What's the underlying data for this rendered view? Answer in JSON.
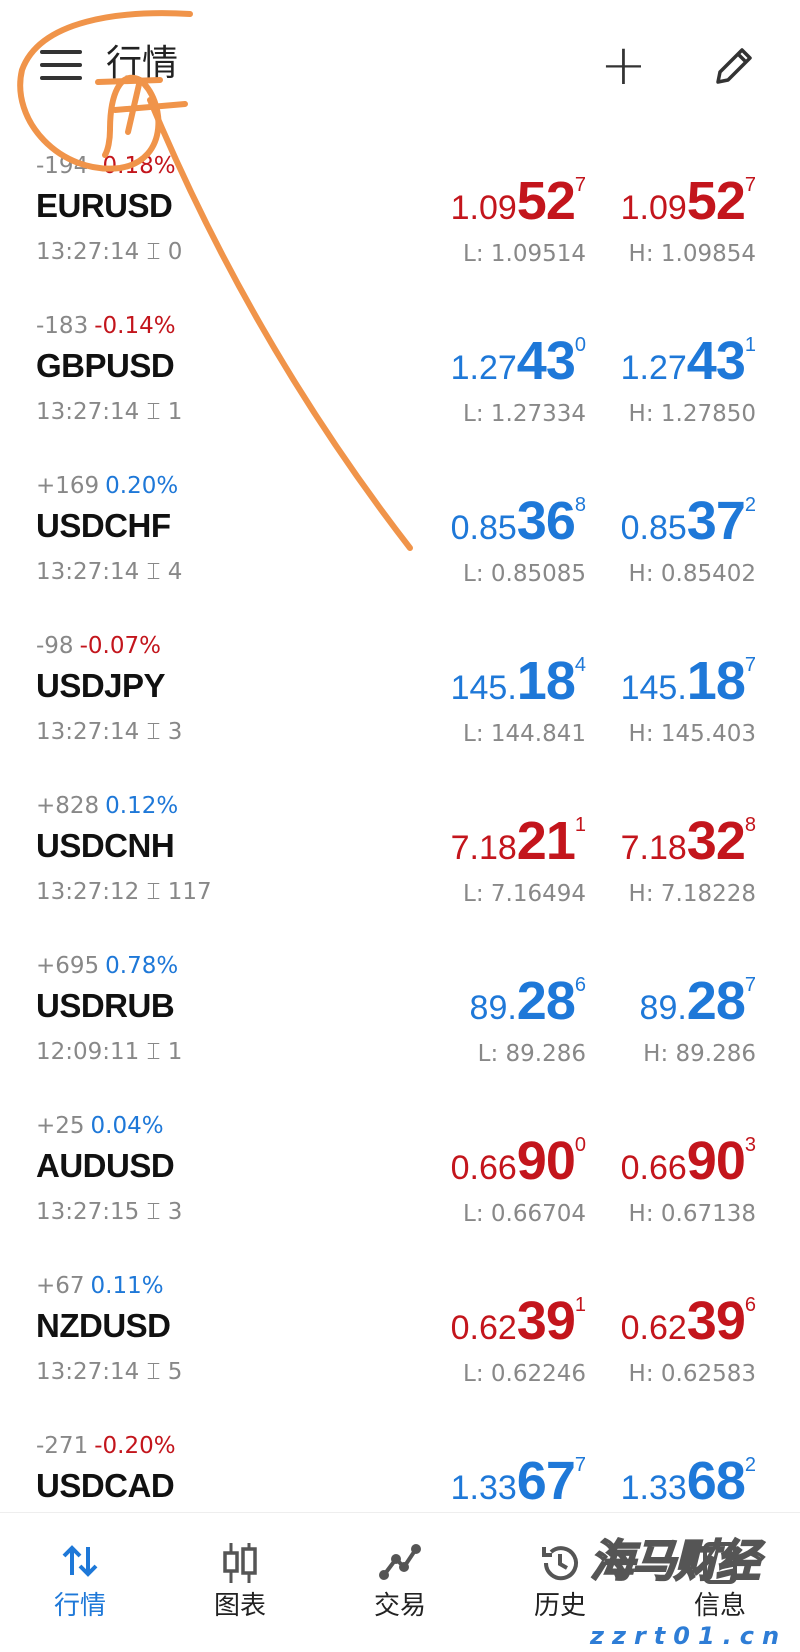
{
  "header": {
    "title": "行情",
    "menu_icon": "hamburger-icon",
    "add_icon": "plus-icon",
    "edit_icon": "pencil-icon"
  },
  "colors": {
    "down": "#c3151c",
    "up": "#1e78d8",
    "annotation": "#f0944a"
  },
  "quotes": [
    {
      "change": "-194",
      "pct": "-0.18%",
      "pct_color": "red",
      "symbol": "EURUSD",
      "time": "13:27:14",
      "spread": "0",
      "price_color": "red",
      "bid": {
        "pre": "1.09",
        "big": "52",
        "sup": "7"
      },
      "ask": {
        "pre": "1.09",
        "big": "52",
        "sup": "7"
      },
      "low": "L: 1.09514",
      "high": "H: 1.09854"
    },
    {
      "change": "-183",
      "pct": "-0.14%",
      "pct_color": "red",
      "symbol": "GBPUSD",
      "time": "13:27:14",
      "spread": "1",
      "price_color": "blue",
      "bid": {
        "pre": "1.27",
        "big": "43",
        "sup": "0"
      },
      "ask": {
        "pre": "1.27",
        "big": "43",
        "sup": "1"
      },
      "low": "L: 1.27334",
      "high": "H: 1.27850"
    },
    {
      "change": "+169",
      "pct": "0.20%",
      "pct_color": "blue",
      "symbol": "USDCHF",
      "time": "13:27:14",
      "spread": "4",
      "price_color": "blue",
      "bid": {
        "pre": "0.85",
        "big": "36",
        "sup": "8"
      },
      "ask": {
        "pre": "0.85",
        "big": "37",
        "sup": "2"
      },
      "low": "L: 0.85085",
      "high": "H: 0.85402"
    },
    {
      "change": "-98",
      "pct": "-0.07%",
      "pct_color": "red",
      "symbol": "USDJPY",
      "time": "13:27:14",
      "spread": "3",
      "price_color": "blue",
      "bid": {
        "pre": "145.",
        "big": "18",
        "sup": "4"
      },
      "ask": {
        "pre": "145.",
        "big": "18",
        "sup": "7"
      },
      "low": "L: 144.841",
      "high": "H: 145.403"
    },
    {
      "change": "+828",
      "pct": "0.12%",
      "pct_color": "blue",
      "symbol": "USDCNH",
      "time": "13:27:12",
      "spread": "117",
      "price_color": "red",
      "bid": {
        "pre": "7.18",
        "big": "21",
        "sup": "1"
      },
      "ask": {
        "pre": "7.18",
        "big": "32",
        "sup": "8"
      },
      "low": "L: 7.16494",
      "high": "H: 7.18228"
    },
    {
      "change": "+695",
      "pct": "0.78%",
      "pct_color": "blue",
      "symbol": "USDRUB",
      "time": "12:09:11",
      "spread": "1",
      "price_color": "blue",
      "bid": {
        "pre": "89.",
        "big": "28",
        "sup": "6"
      },
      "ask": {
        "pre": "89.",
        "big": "28",
        "sup": "7"
      },
      "low": "L: 89.286",
      "high": "H: 89.286"
    },
    {
      "change": "+25",
      "pct": "0.04%",
      "pct_color": "blue",
      "symbol": "AUDUSD",
      "time": "13:27:15",
      "spread": "3",
      "price_color": "red",
      "bid": {
        "pre": "0.66",
        "big": "90",
        "sup": "0"
      },
      "ask": {
        "pre": "0.66",
        "big": "90",
        "sup": "3"
      },
      "low": "L: 0.66704",
      "high": "H: 0.67138"
    },
    {
      "change": "+67",
      "pct": "0.11%",
      "pct_color": "blue",
      "symbol": "NZDUSD",
      "time": "13:27:14",
      "spread": "5",
      "price_color": "red",
      "bid": {
        "pre": "0.62",
        "big": "39",
        "sup": "1"
      },
      "ask": {
        "pre": "0.62",
        "big": "39",
        "sup": "6"
      },
      "low": "L: 0.62246",
      "high": "H: 0.62583"
    },
    {
      "change": "-271",
      "pct": "-0.20%",
      "pct_color": "red",
      "symbol": "USDCAD",
      "time": "",
      "spread": "",
      "price_color": "blue",
      "bid": {
        "pre": "1.33",
        "big": "67",
        "sup": "7"
      },
      "ask": {
        "pre": "1.33",
        "big": "68",
        "sup": "2"
      },
      "low": "",
      "high": ""
    }
  ],
  "nav": [
    {
      "label": "行情",
      "icon": "arrows-up-down-icon",
      "active": true
    },
    {
      "label": "图表",
      "icon": "candlestick-icon"
    },
    {
      "label": "交易",
      "icon": "trend-line-icon"
    },
    {
      "label": "历史",
      "icon": "history-icon"
    },
    {
      "label": "信息",
      "icon": "message-icon"
    }
  ],
  "watermark": {
    "text": "海马财经",
    "url": "zzrt01.cn"
  }
}
